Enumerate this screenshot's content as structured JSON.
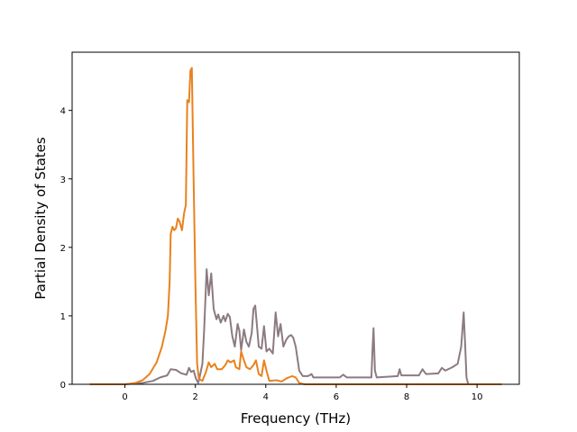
{
  "chart_data": {
    "type": "line",
    "title": "",
    "xlabel": "Frequency (THz)",
    "ylabel": "Partial Density of States",
    "xlim": [
      -1.5,
      11.2
    ],
    "ylim": [
      0,
      4.85
    ],
    "xticks": [
      0,
      2,
      4,
      6,
      8,
      10
    ],
    "yticks": [
      0,
      1,
      2,
      3,
      4
    ],
    "grid": false,
    "legend": "none",
    "series": [
      {
        "color": "#8c7b80",
        "points": [
          [
            -1.0,
            0
          ],
          [
            0.0,
            0
          ],
          [
            0.5,
            0.02
          ],
          [
            0.8,
            0.05
          ],
          [
            1.0,
            0.1
          ],
          [
            1.2,
            0.13
          ],
          [
            1.3,
            0.22
          ],
          [
            1.45,
            0.21
          ],
          [
            1.6,
            0.16
          ],
          [
            1.75,
            0.14
          ],
          [
            1.82,
            0.24
          ],
          [
            1.88,
            0.18
          ],
          [
            1.95,
            0.2
          ],
          [
            2.02,
            0.08
          ],
          [
            2.08,
            0.02
          ],
          [
            2.12,
            0.1
          ],
          [
            2.2,
            0.3
          ],
          [
            2.25,
            0.8
          ],
          [
            2.32,
            1.68
          ],
          [
            2.38,
            1.3
          ],
          [
            2.45,
            1.62
          ],
          [
            2.52,
            1.1
          ],
          [
            2.6,
            0.95
          ],
          [
            2.65,
            1.02
          ],
          [
            2.72,
            0.9
          ],
          [
            2.8,
            1.0
          ],
          [
            2.85,
            0.92
          ],
          [
            2.92,
            1.03
          ],
          [
            2.98,
            0.98
          ],
          [
            3.05,
            0.7
          ],
          [
            3.12,
            0.55
          ],
          [
            3.2,
            0.88
          ],
          [
            3.25,
            0.78
          ],
          [
            3.3,
            0.5
          ],
          [
            3.38,
            0.8
          ],
          [
            3.45,
            0.62
          ],
          [
            3.52,
            0.55
          ],
          [
            3.6,
            0.75
          ],
          [
            3.65,
            1.1
          ],
          [
            3.7,
            1.15
          ],
          [
            3.75,
            0.85
          ],
          [
            3.8,
            0.55
          ],
          [
            3.88,
            0.52
          ],
          [
            3.95,
            0.85
          ],
          [
            4.02,
            0.48
          ],
          [
            4.1,
            0.52
          ],
          [
            4.2,
            0.45
          ],
          [
            4.28,
            1.05
          ],
          [
            4.35,
            0.7
          ],
          [
            4.42,
            0.88
          ],
          [
            4.5,
            0.55
          ],
          [
            4.58,
            0.65
          ],
          [
            4.65,
            0.7
          ],
          [
            4.72,
            0.72
          ],
          [
            4.78,
            0.68
          ],
          [
            4.85,
            0.55
          ],
          [
            4.95,
            0.2
          ],
          [
            5.05,
            0.12
          ],
          [
            5.2,
            0.12
          ],
          [
            5.3,
            0.15
          ],
          [
            5.35,
            0.1
          ],
          [
            6.1,
            0.1
          ],
          [
            6.2,
            0.14
          ],
          [
            6.3,
            0.1
          ],
          [
            7.0,
            0.1
          ],
          [
            7.03,
            0.5
          ],
          [
            7.06,
            0.82
          ],
          [
            7.1,
            0.2
          ],
          [
            7.15,
            0.1
          ],
          [
            7.75,
            0.12
          ],
          [
            7.8,
            0.22
          ],
          [
            7.85,
            0.13
          ],
          [
            8.35,
            0.13
          ],
          [
            8.45,
            0.22
          ],
          [
            8.55,
            0.15
          ],
          [
            8.9,
            0.16
          ],
          [
            9.0,
            0.24
          ],
          [
            9.1,
            0.2
          ],
          [
            9.3,
            0.25
          ],
          [
            9.45,
            0.3
          ],
          [
            9.55,
            0.55
          ],
          [
            9.62,
            1.05
          ],
          [
            9.66,
            0.6
          ],
          [
            9.7,
            0.1
          ],
          [
            9.75,
            0
          ],
          [
            10.7,
            0
          ]
        ]
      },
      {
        "color": "#e8821e",
        "points": [
          [
            -1.0,
            0
          ],
          [
            0.0,
            0
          ],
          [
            0.3,
            0.02
          ],
          [
            0.5,
            0.06
          ],
          [
            0.7,
            0.15
          ],
          [
            0.9,
            0.32
          ],
          [
            1.05,
            0.55
          ],
          [
            1.15,
            0.78
          ],
          [
            1.22,
            1.0
          ],
          [
            1.27,
            1.5
          ],
          [
            1.3,
            2.2
          ],
          [
            1.35,
            2.3
          ],
          [
            1.4,
            2.25
          ],
          [
            1.45,
            2.28
          ],
          [
            1.5,
            2.42
          ],
          [
            1.55,
            2.38
          ],
          [
            1.62,
            2.25
          ],
          [
            1.68,
            2.5
          ],
          [
            1.73,
            2.62
          ],
          [
            1.77,
            4.15
          ],
          [
            1.82,
            4.12
          ],
          [
            1.86,
            4.58
          ],
          [
            1.9,
            4.62
          ],
          [
            1.95,
            3.0
          ],
          [
            2.0,
            1.5
          ],
          [
            2.05,
            0.3
          ],
          [
            2.1,
            0.08
          ],
          [
            2.2,
            0.05
          ],
          [
            2.3,
            0.18
          ],
          [
            2.38,
            0.32
          ],
          [
            2.45,
            0.25
          ],
          [
            2.55,
            0.3
          ],
          [
            2.62,
            0.22
          ],
          [
            2.75,
            0.22
          ],
          [
            2.85,
            0.28
          ],
          [
            2.92,
            0.35
          ],
          [
            3.0,
            0.32
          ],
          [
            3.1,
            0.35
          ],
          [
            3.15,
            0.25
          ],
          [
            3.25,
            0.22
          ],
          [
            3.3,
            0.48
          ],
          [
            3.38,
            0.35
          ],
          [
            3.45,
            0.25
          ],
          [
            3.55,
            0.22
          ],
          [
            3.65,
            0.28
          ],
          [
            3.72,
            0.35
          ],
          [
            3.8,
            0.15
          ],
          [
            3.88,
            0.12
          ],
          [
            3.95,
            0.35
          ],
          [
            4.02,
            0.2
          ],
          [
            4.1,
            0.05
          ],
          [
            4.3,
            0.06
          ],
          [
            4.45,
            0.04
          ],
          [
            4.6,
            0.09
          ],
          [
            4.75,
            0.12
          ],
          [
            4.85,
            0.1
          ],
          [
            4.95,
            0.02
          ],
          [
            5.1,
            0.0
          ],
          [
            10.7,
            0
          ]
        ]
      }
    ]
  }
}
